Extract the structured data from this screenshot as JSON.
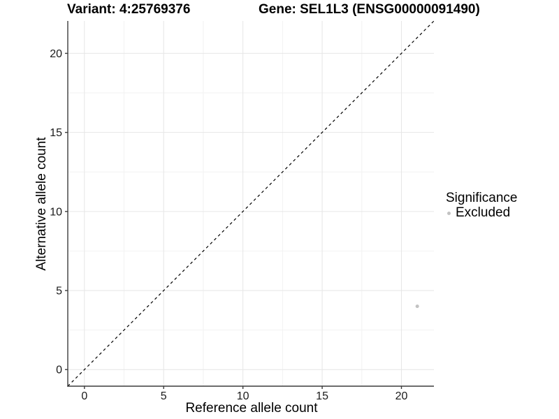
{
  "chart_data": {
    "type": "scatter",
    "title_left": "Variant: 4:25769376",
    "title_right": "Gene: SEL1L3 (ENSG00000091490)",
    "xlabel": "Reference allele count",
    "ylabel": "Alternative allele count",
    "x_ticks": [
      0,
      5,
      10,
      15,
      20
    ],
    "y_ticks": [
      0,
      5,
      10,
      15,
      20
    ],
    "x_minor_ticks": [
      2.5,
      7.5,
      12.5,
      17.5
    ],
    "y_minor_ticks": [
      2.5,
      7.5,
      12.5,
      17.5
    ],
    "xlim": [
      -1.05,
      22.05
    ],
    "ylim": [
      -1.05,
      22.05
    ],
    "grid": true,
    "points": [
      {
        "x": 21,
        "y": 4,
        "series": "Excluded"
      }
    ],
    "identity_line": {
      "style": "dashed",
      "from": [
        -1.05,
        -1.05
      ],
      "to": [
        22.05,
        22.05
      ],
      "color": "#000000"
    },
    "legend": {
      "position": "right",
      "title": "Significance",
      "items": [
        {
          "label": "Excluded",
          "color": "#c2c2c2"
        }
      ]
    },
    "colors": {
      "background": "#ffffff",
      "grid_major": "#e6e6e6",
      "grid_minor": "#f2f2f2",
      "axis_line": "#3c3c3c",
      "tick_label": "#1a1a1a",
      "point": "#c2c2c2"
    }
  }
}
